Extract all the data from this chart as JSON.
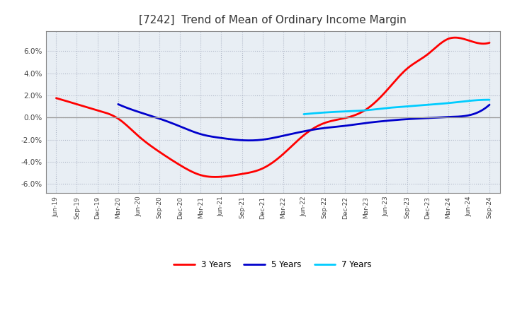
{
  "title": "[7242]  Trend of Mean of Ordinary Income Margin",
  "x_labels": [
    "Jun-19",
    "Sep-19",
    "Dec-19",
    "Mar-20",
    "Jun-20",
    "Sep-20",
    "Dec-20",
    "Mar-21",
    "Jun-21",
    "Sep-21",
    "Dec-21",
    "Mar-22",
    "Jun-22",
    "Sep-22",
    "Dec-22",
    "Mar-23",
    "Jun-23",
    "Sep-23",
    "Dec-23",
    "Mar-24",
    "Jun-24",
    "Sep-24"
  ],
  "yticks": [
    -6.0,
    -4.0,
    -2.0,
    0.0,
    2.0,
    4.0,
    6.0
  ],
  "ylim": [
    -6.8,
    7.8
  ],
  "series": {
    "3 Years": {
      "color": "#FF0000",
      "data": [
        1.75,
        1.2,
        0.65,
        -0.1,
        -1.7,
        -3.1,
        -4.3,
        -5.2,
        -5.35,
        -5.1,
        -4.6,
        -3.3,
        -1.6,
        -0.5,
        -0.05,
        0.7,
        2.4,
        4.4,
        5.7,
        7.1,
        6.95,
        6.75
      ]
    },
    "5 Years": {
      "color": "#0000CC",
      "data": [
        null,
        null,
        null,
        1.2,
        0.5,
        -0.1,
        -0.8,
        -1.5,
        -1.85,
        -2.05,
        -2.0,
        -1.65,
        -1.25,
        -0.95,
        -0.75,
        -0.5,
        -0.3,
        -0.15,
        -0.05,
        0.05,
        0.2,
        1.15
      ]
    },
    "7 Years": {
      "color": "#00CCFF",
      "data": [
        null,
        null,
        null,
        null,
        null,
        null,
        null,
        null,
        null,
        null,
        null,
        null,
        0.3,
        0.45,
        0.55,
        0.65,
        0.85,
        1.0,
        1.15,
        1.3,
        1.5,
        1.6
      ]
    },
    "10 Years": {
      "color": "#008000",
      "data": [
        null,
        null,
        null,
        null,
        null,
        null,
        null,
        null,
        null,
        null,
        null,
        null,
        null,
        null,
        null,
        null,
        null,
        null,
        null,
        null,
        null,
        null
      ]
    }
  },
  "background_color": "#ffffff",
  "plot_bg_color": "#e8eef4",
  "grid_color": "#b0b8c8",
  "title_fontsize": 11,
  "legend_loc": "lower center"
}
